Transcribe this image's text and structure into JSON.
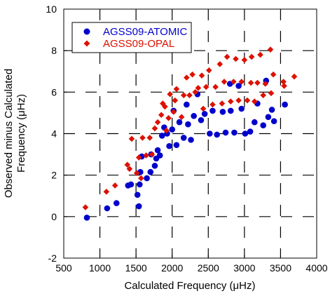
{
  "chart_data": {
    "type": "scatter",
    "xlabel": "Calculated Frequency (μHz)",
    "ylabel_line1": "Observed minus Calculated",
    "ylabel_line2": "Frequency (μHz)",
    "xlim": [
      500,
      4000
    ],
    "ylim": [
      -2,
      10
    ],
    "xticks": [
      500,
      1000,
      1500,
      2000,
      2500,
      3000,
      3500,
      4000
    ],
    "yticks": [
      -2,
      0,
      2,
      4,
      6,
      8,
      10
    ],
    "grid": true,
    "grid_style": "dashed",
    "legend_position": "top-left",
    "series": [
      {
        "name": "AGSS09-ATOMIC",
        "color": "#0000cc",
        "marker": "circle",
        "points": [
          [
            820,
            -0.05
          ],
          [
            1100,
            0.4
          ],
          [
            1230,
            0.65
          ],
          [
            1390,
            1.5
          ],
          [
            1430,
            1.55
          ],
          [
            1520,
            1.05
          ],
          [
            1540,
            0.5
          ],
          [
            1550,
            1.55
          ],
          [
            1560,
            2.15
          ],
          [
            1580,
            2.9
          ],
          [
            1650,
            1.85
          ],
          [
            1700,
            2.15
          ],
          [
            1710,
            3.0
          ],
          [
            1760,
            2.45
          ],
          [
            1780,
            2.8
          ],
          [
            1800,
            3.2
          ],
          [
            1830,
            2.95
          ],
          [
            1860,
            3.9
          ],
          [
            1890,
            4.3
          ],
          [
            1930,
            4.0
          ],
          [
            1960,
            3.4
          ],
          [
            2000,
            4.2
          ],
          [
            2020,
            5.1
          ],
          [
            2060,
            3.45
          ],
          [
            2100,
            4.55
          ],
          [
            2160,
            3.8
          ],
          [
            2200,
            5.4
          ],
          [
            2220,
            4.45
          ],
          [
            2260,
            3.7
          ],
          [
            2300,
            4.85
          ],
          [
            2350,
            5.9
          ],
          [
            2400,
            4.65
          ],
          [
            2450,
            4.95
          ],
          [
            2520,
            4.0
          ],
          [
            2560,
            5.1
          ],
          [
            2620,
            3.95
          ],
          [
            2700,
            5.05
          ],
          [
            2740,
            4.05
          ],
          [
            2800,
            6.4
          ],
          [
            2810,
            5.1
          ],
          [
            2860,
            4.05
          ],
          [
            2920,
            6.3
          ],
          [
            2960,
            5.2
          ],
          [
            3010,
            4.0
          ],
          [
            3080,
            4.1
          ],
          [
            3140,
            4.55
          ],
          [
            3180,
            5.45
          ],
          [
            3260,
            4.4
          ],
          [
            3300,
            6.55
          ],
          [
            3330,
            4.8
          ],
          [
            3380,
            5.15
          ],
          [
            3410,
            4.6
          ],
          [
            3560,
            5.4
          ]
        ]
      },
      {
        "name": "AGSS09-OPAL",
        "color": "#dd1100",
        "marker": "diamond",
        "points": [
          [
            800,
            0.45
          ],
          [
            1090,
            1.2
          ],
          [
            1210,
            1.5
          ],
          [
            1380,
            2.5
          ],
          [
            1410,
            2.3
          ],
          [
            1440,
            3.75
          ],
          [
            1510,
            2.1
          ],
          [
            1540,
            2.85
          ],
          [
            1570,
            1.85
          ],
          [
            1590,
            3.8
          ],
          [
            1640,
            2.95
          ],
          [
            1690,
            3.8
          ],
          [
            1720,
            3.0
          ],
          [
            1760,
            4.25
          ],
          [
            1800,
            4.55
          ],
          [
            1850,
            4.9
          ],
          [
            1870,
            5.45
          ],
          [
            1900,
            5.3
          ],
          [
            1920,
            4.15
          ],
          [
            1950,
            4.75
          ],
          [
            1970,
            5.9
          ],
          [
            2020,
            5.05
          ],
          [
            2040,
            5.6
          ],
          [
            2060,
            6.15
          ],
          [
            2130,
            4.8
          ],
          [
            2160,
            5.85
          ],
          [
            2200,
            6.7
          ],
          [
            2240,
            5.85
          ],
          [
            2280,
            6.85
          ],
          [
            2320,
            6.0
          ],
          [
            2360,
            6.2
          ],
          [
            2410,
            6.8
          ],
          [
            2430,
            5.2
          ],
          [
            2470,
            6.25
          ],
          [
            2510,
            7.05
          ],
          [
            2560,
            5.4
          ],
          [
            2600,
            6.25
          ],
          [
            2660,
            7.35
          ],
          [
            2690,
            5.45
          ],
          [
            2720,
            6.5
          ],
          [
            2760,
            7.7
          ],
          [
            2810,
            5.55
          ],
          [
            2850,
            6.5
          ],
          [
            2880,
            7.6
          ],
          [
            2920,
            5.6
          ],
          [
            2960,
            6.5
          ],
          [
            3000,
            7.55
          ],
          [
            3040,
            5.6
          ],
          [
            3090,
            6.45
          ],
          [
            3100,
            7.7
          ],
          [
            3140,
            5.55
          ],
          [
            3180,
            6.45
          ],
          [
            3220,
            7.8
          ],
          [
            3260,
            5.85
          ],
          [
            3290,
            6.4
          ],
          [
            3360,
            8.05
          ],
          [
            3370,
            5.95
          ],
          [
            3400,
            6.85
          ],
          [
            3540,
            6.5
          ],
          [
            3550,
            6.3
          ],
          [
            3690,
            6.75
          ]
        ]
      }
    ]
  }
}
